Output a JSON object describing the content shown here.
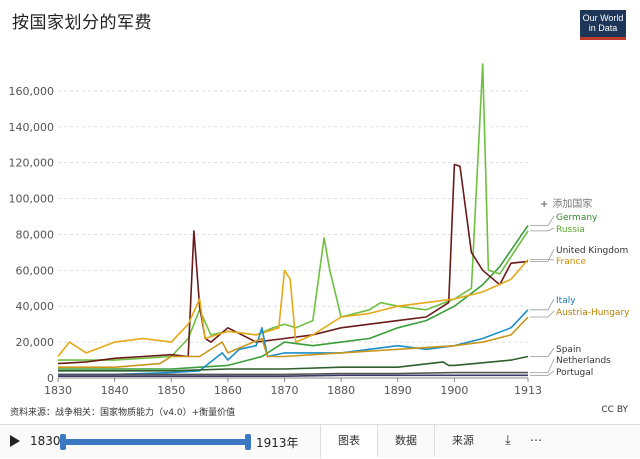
{
  "header": {
    "title": "按国家划分的军费",
    "logo_line1": "Our World",
    "logo_line2": "in Data"
  },
  "add_country_label": "添加国家",
  "footer": {
    "source": "资料来源：战争相关：国家物质能力（v4.0）+衡量价值",
    "license": "CC BY"
  },
  "controls": {
    "start_year": "1830",
    "end_year": "1913年",
    "tabs": [
      "图表",
      "数据",
      "来源"
    ],
    "active_tab": "图表"
  },
  "chart_data": {
    "type": "line",
    "title": "按国家划分的军费",
    "xlabel": "",
    "ylabel": "",
    "xlim": [
      1830,
      1913
    ],
    "ylim": [
      0,
      180000
    ],
    "x_ticks": [
      1830,
      1840,
      1850,
      1860,
      1870,
      1880,
      1890,
      1900,
      1913
    ],
    "y_ticks": [
      0,
      20000,
      40000,
      60000,
      80000,
      100000,
      120000,
      140000,
      160000
    ],
    "y_tick_labels": [
      "0",
      "20,000",
      "40,000",
      "60,000",
      "80,000",
      "100,000",
      "120,000",
      "140,000",
      "160,000"
    ],
    "series": [
      {
        "name": "Germany",
        "color": "#3a9e3a",
        "label_color": "#2d8a2d",
        "x": [
          1830,
          1840,
          1850,
          1855,
          1860,
          1866,
          1870,
          1875,
          1880,
          1885,
          1890,
          1895,
          1900,
          1905,
          1908,
          1913
        ],
        "y": [
          5000,
          5000,
          5000,
          6000,
          7000,
          12000,
          20000,
          18000,
          20000,
          22000,
          28000,
          32000,
          40000,
          52000,
          62000,
          85000
        ]
      },
      {
        "name": "Russia",
        "color": "#6fbf40",
        "label_color": "#5aaa30",
        "x": [
          1830,
          1840,
          1850,
          1853,
          1855,
          1857,
          1860,
          1865,
          1868,
          1870,
          1872,
          1875,
          1877,
          1878,
          1880,
          1885,
          1887,
          1890,
          1895,
          1900,
          1903,
          1905,
          1906,
          1908,
          1913
        ],
        "y": [
          10000,
          10000,
          12000,
          22000,
          38000,
          24000,
          26000,
          24000,
          28000,
          30000,
          28000,
          32000,
          78000,
          60000,
          34000,
          38000,
          42000,
          40000,
          38000,
          44000,
          50000,
          175000,
          60000,
          58000,
          82000
        ]
      },
      {
        "name": "United Kingdom",
        "color": "#6b1a1a",
        "label_color": "#333",
        "x": [
          1830,
          1835,
          1840,
          1845,
          1850,
          1853,
          1854,
          1855,
          1856,
          1857,
          1860,
          1865,
          1870,
          1875,
          1880,
          1885,
          1890,
          1895,
          1899,
          1900,
          1901,
          1903,
          1905,
          1908,
          1910,
          1913
        ],
        "y": [
          8000,
          9000,
          11000,
          12000,
          13000,
          12000,
          82000,
          40000,
          22000,
          20000,
          28000,
          20000,
          22000,
          24000,
          28000,
          30000,
          32000,
          34000,
          42000,
          119000,
          118000,
          70000,
          60000,
          52000,
          64000,
          65000
        ]
      },
      {
        "name": "France",
        "color": "#e6a817",
        "label_color": "#c98c00",
        "x": [
          1830,
          1832,
          1835,
          1840,
          1845,
          1850,
          1853,
          1855,
          1856,
          1858,
          1860,
          1865,
          1869,
          1870,
          1871,
          1872,
          1875,
          1880,
          1885,
          1890,
          1895,
          1900,
          1905,
          1910,
          1913
        ],
        "y": [
          12000,
          20000,
          14000,
          20000,
          22000,
          20000,
          30000,
          44000,
          22000,
          24000,
          26000,
          24000,
          28000,
          60000,
          55000,
          20000,
          24000,
          34000,
          36000,
          40000,
          42000,
          44000,
          48000,
          55000,
          66000
        ]
      },
      {
        "name": "Italy",
        "color": "#1a8fc9",
        "label_color": "#1a75b0",
        "x": [
          1830,
          1840,
          1850,
          1855,
          1859,
          1860,
          1862,
          1865,
          1866,
          1867,
          1870,
          1880,
          1890,
          1895,
          1900,
          1905,
          1910,
          1913
        ],
        "y": [
          2000,
          2000,
          3000,
          4000,
          14000,
          10000,
          16000,
          18000,
          28000,
          12000,
          14000,
          14000,
          18000,
          16000,
          18000,
          22000,
          28000,
          38000
        ]
      },
      {
        "name": "Austria-Hungary",
        "color": "#c9961a",
        "label_color": "#b57f00",
        "x": [
          1830,
          1840,
          1848,
          1850,
          1855,
          1859,
          1860,
          1866,
          1867,
          1870,
          1880,
          1890,
          1900,
          1905,
          1910,
          1913
        ],
        "y": [
          6000,
          6000,
          8000,
          12000,
          12000,
          20000,
          14000,
          22000,
          12000,
          12000,
          14000,
          16000,
          18000,
          20000,
          24000,
          34000
        ]
      },
      {
        "name": "Spain",
        "color": "#2f5e2f",
        "label_color": "#333",
        "x": [
          1830,
          1840,
          1850,
          1860,
          1870,
          1880,
          1890,
          1898,
          1899,
          1900,
          1910,
          1913
        ],
        "y": [
          4000,
          4000,
          4000,
          5000,
          5000,
          6000,
          6000,
          9000,
          7000,
          7000,
          10000,
          12000
        ]
      },
      {
        "name": "Netherlands",
        "color": "#555555",
        "label_color": "#333",
        "x": [
          1830,
          1840,
          1850,
          1860,
          1870,
          1880,
          1890,
          1900,
          1910,
          1913
        ],
        "y": [
          2000,
          2000,
          2000,
          2000,
          2000,
          2500,
          2500,
          3000,
          3000,
          3000
        ]
      },
      {
        "name": "Portugal",
        "color": "#3a3a6a",
        "label_color": "#333",
        "x": [
          1830,
          1840,
          1850,
          1860,
          1870,
          1880,
          1890,
          1900,
          1910,
          1913
        ],
        "y": [
          1000,
          1000,
          1000,
          1000,
          1000,
          1500,
          1500,
          1500,
          1500,
          1500
        ]
      }
    ]
  }
}
